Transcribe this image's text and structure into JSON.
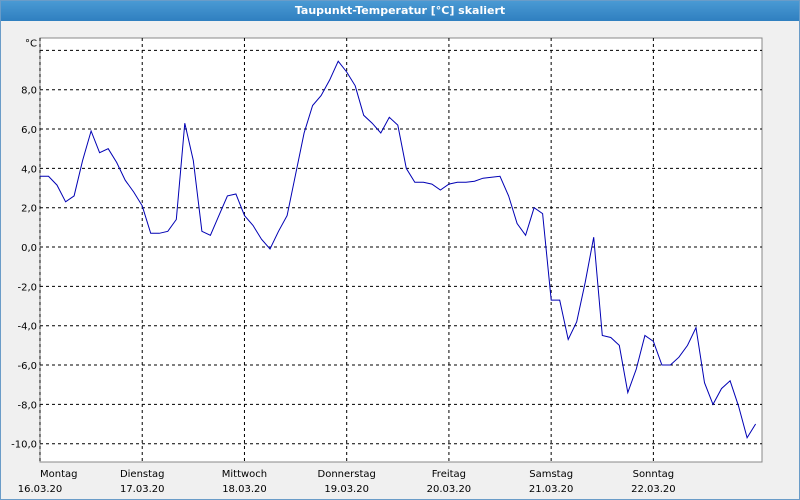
{
  "window_title": "Taupunkt-Temperatur [°C] skaliert",
  "chart_data": {
    "type": "line",
    "color": "#0000b4",
    "grid": true,
    "xlim": [
      "16.03.20 00:00",
      "23.03.20 01:30"
    ],
    "xticks": [
      {
        "value": "16.03.20 00:00",
        "label": "16.03.20",
        "day": "Montag"
      },
      {
        "value": "17.03.20 00:00",
        "label": "17.03.20",
        "day": "Dienstag"
      },
      {
        "value": "18.03.20 00:00",
        "label": "18.03.20",
        "day": "Mittwoch"
      },
      {
        "value": "19.03.20 00:00",
        "label": "19.03.20",
        "day": "Donnerstag"
      },
      {
        "value": "20.03.20 00:00",
        "label": "20.03.20",
        "day": "Freitag"
      },
      {
        "value": "21.03.20 00:00",
        "label": "21.03.20",
        "day": "Samstag"
      },
      {
        "value": "22.03.20 00:00",
        "label": "22.03.20",
        "day": "Sonntag"
      }
    ],
    "ylim": [
      -10.93,
      10.63
    ],
    "yticks": [
      {
        "value": -10,
        "label": "-10,0"
      },
      {
        "value": -8,
        "label": "-8,0"
      },
      {
        "value": -6,
        "label": "-6,0"
      },
      {
        "value": -4,
        "label": "-4,0"
      },
      {
        "value": -2,
        "label": "-2,0"
      },
      {
        "value": 0,
        "label": "0,0"
      },
      {
        "value": 2,
        "label": "2,0"
      },
      {
        "value": 4,
        "label": "4,0"
      },
      {
        "value": 6,
        "label": "6,0"
      },
      {
        "value": 8,
        "label": "8,0"
      },
      {
        "value": 10,
        "label": "°C"
      }
    ],
    "x": [
      "16.03.20 00:00",
      "16.03.20 02:00",
      "16.03.20 04:00",
      "16.03.20 06:00",
      "16.03.20 08:00",
      "16.03.20 10:00",
      "16.03.20 12:00",
      "16.03.20 14:00",
      "16.03.20 16:00",
      "16.03.20 18:00",
      "16.03.20 20:00",
      "16.03.20 22:00",
      "17.03.20 00:00",
      "17.03.20 02:00",
      "17.03.20 04:00",
      "17.03.20 06:00",
      "17.03.20 08:00",
      "17.03.20 10:00",
      "17.03.20 12:00",
      "17.03.20 14:00",
      "17.03.20 16:00",
      "17.03.20 18:00",
      "17.03.20 20:00",
      "17.03.20 22:00",
      "18.03.20 00:00",
      "18.03.20 02:00",
      "18.03.20 04:00",
      "18.03.20 06:00",
      "18.03.20 08:00",
      "18.03.20 10:00",
      "18.03.20 12:00",
      "18.03.20 14:00",
      "18.03.20 16:00",
      "18.03.20 18:00",
      "18.03.20 20:00",
      "18.03.20 22:00",
      "19.03.20 00:00",
      "19.03.20 02:00",
      "19.03.20 04:00",
      "19.03.20 06:00",
      "19.03.20 08:00",
      "19.03.20 10:00",
      "19.03.20 12:00",
      "19.03.20 14:00",
      "19.03.20 16:00",
      "19.03.20 18:00",
      "19.03.20 20:00",
      "19.03.20 22:00",
      "20.03.20 00:00",
      "20.03.20 02:00",
      "20.03.20 04:00",
      "20.03.20 06:00",
      "20.03.20 08:00",
      "20.03.20 10:00",
      "20.03.20 12:00",
      "20.03.20 14:00",
      "20.03.20 16:00",
      "20.03.20 18:00",
      "20.03.20 20:00",
      "20.03.20 22:00",
      "21.03.20 00:00",
      "21.03.20 02:00",
      "21.03.20 04:00",
      "21.03.20 06:00",
      "21.03.20 08:00",
      "21.03.20 10:00",
      "21.03.20 12:00",
      "21.03.20 14:00",
      "21.03.20 16:00",
      "21.03.20 18:00",
      "21.03.20 20:00",
      "21.03.20 22:00",
      "22.03.20 00:00",
      "22.03.20 02:00",
      "22.03.20 04:00",
      "22.03.20 06:00",
      "22.03.20 08:00",
      "22.03.20 10:00",
      "22.03.20 12:00",
      "22.03.20 14:00",
      "22.03.20 16:00",
      "22.03.20 18:00",
      "22.03.20 20:00",
      "22.03.20 22:00",
      "23.03.20 00:00"
    ],
    "values": [
      3.6,
      3.6,
      3.15,
      2.3,
      2.6,
      4.4,
      5.9,
      4.8,
      5.0,
      4.3,
      3.4,
      2.8,
      2.1,
      0.7,
      0.7,
      0.8,
      1.4,
      6.3,
      4.4,
      0.8,
      0.6,
      1.6,
      2.6,
      2.7,
      1.6,
      1.1,
      0.4,
      -0.1,
      0.8,
      1.6,
      3.7,
      5.8,
      7.2,
      7.7,
      8.5,
      9.45,
      8.9,
      8.2,
      6.7,
      6.3,
      5.8,
      6.6,
      6.2,
      4.0,
      3.3,
      3.3,
      3.2,
      2.9,
      3.2,
      3.3,
      3.3,
      3.35,
      3.5,
      3.55,
      3.6,
      2.6,
      1.2,
      0.6,
      2.0,
      1.7,
      -2.7,
      -2.7,
      -4.7,
      -3.8,
      -1.8,
      0.5,
      -4.5,
      -4.6,
      -5.0,
      -7.4,
      -6.2,
      -4.5,
      -4.8,
      -6.0,
      -6.0,
      -5.6,
      -5.0,
      -4.1,
      -6.9,
      -8.0,
      -7.2,
      -6.8,
      -8.1,
      -9.7,
      -9.0
    ]
  }
}
